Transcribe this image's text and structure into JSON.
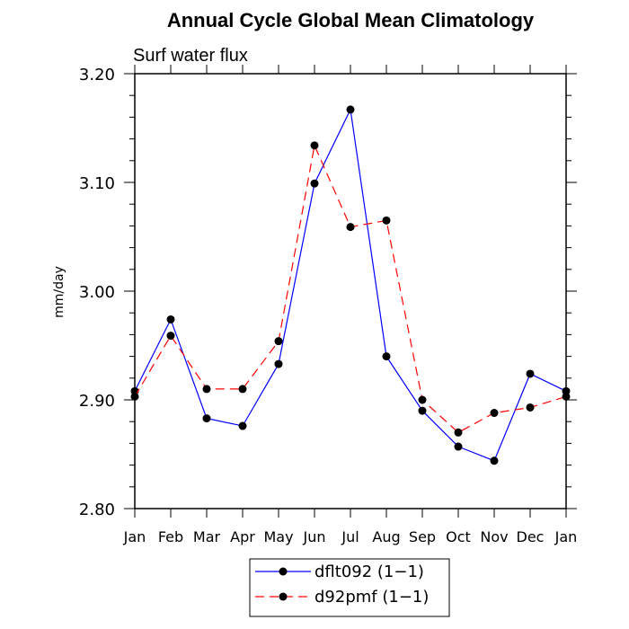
{
  "chart_data": {
    "type": "line",
    "title": "Annual Cycle Global Mean Climatology",
    "subtitle": "Surf water flux",
    "xlabel": "",
    "ylabel": "mm/day",
    "categories": [
      "Jan",
      "Feb",
      "Mar",
      "Apr",
      "May",
      "Jun",
      "Jul",
      "Aug",
      "Sep",
      "Oct",
      "Nov",
      "Dec",
      "Jan"
    ],
    "y_ticks": [
      "2.80",
      "2.90",
      "3.00",
      "3.10",
      "3.20"
    ],
    "ylim": [
      2.8,
      3.2
    ],
    "series": [
      {
        "name": "dflt092 (1−1)",
        "color": "#0000ff",
        "dash": "solid",
        "values": [
          2.908,
          2.974,
          2.883,
          2.876,
          2.933,
          3.099,
          3.167,
          2.94,
          2.89,
          2.857,
          2.844,
          2.924,
          2.908
        ]
      },
      {
        "name": "d92pmf (1−1)",
        "color": "#ff0000",
        "dash": "dashed",
        "values": [
          2.903,
          2.959,
          2.91,
          2.91,
          2.954,
          3.134,
          3.059,
          3.065,
          2.9,
          2.87,
          2.888,
          2.893,
          2.903
        ]
      }
    ],
    "grid": false,
    "legend_position": "bottom"
  }
}
